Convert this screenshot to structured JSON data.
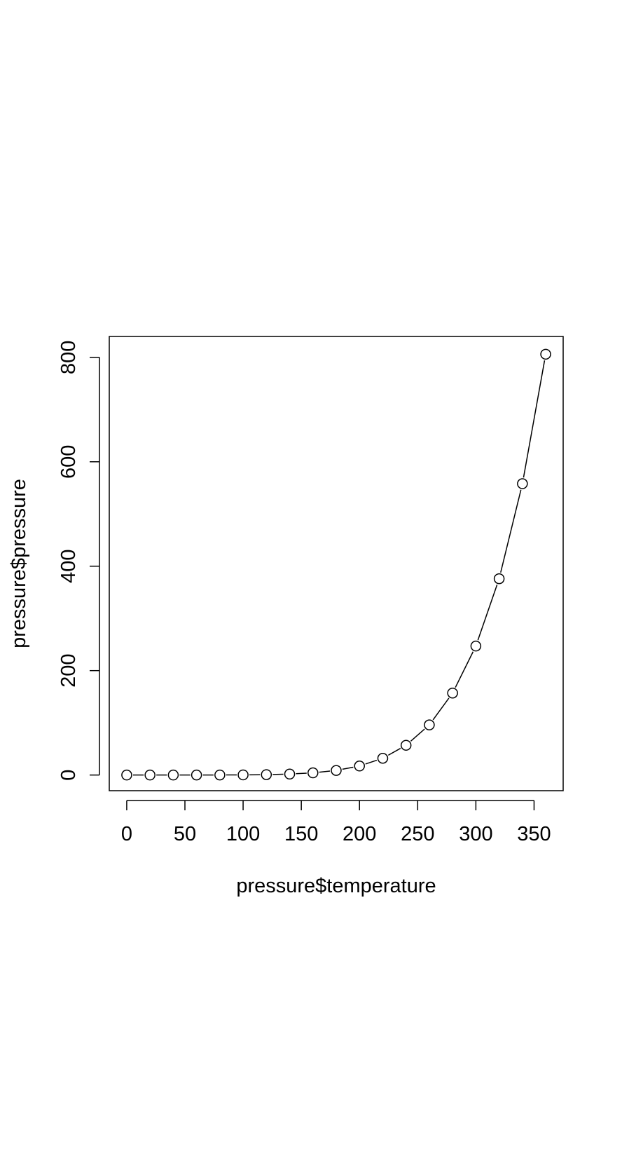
{
  "chart_data": {
    "type": "line",
    "title": "",
    "xlabel": "pressure$temperature",
    "ylabel": "pressure$pressure",
    "xlim": [
      -15,
      375
    ],
    "ylim": [
      -30,
      840
    ],
    "xticks": [
      "0",
      "50",
      "100",
      "150",
      "200",
      "250",
      "300",
      "350"
    ],
    "yticks": [
      "0",
      "200",
      "400",
      "600",
      "800"
    ],
    "grid": false,
    "legend": "none",
    "markers": "open-circle",
    "series": [
      {
        "x": [
          0,
          20,
          40,
          60,
          80,
          100,
          120,
          140,
          160,
          180,
          200,
          220,
          240,
          260,
          280,
          300,
          320,
          340,
          360
        ],
        "y": [
          0.0002,
          0.0012,
          0.006,
          0.03,
          0.09,
          0.27,
          0.75,
          1.85,
          4.2,
          8.8,
          17.3,
          32.1,
          57,
          96,
          157,
          247,
          376,
          558,
          806
        ]
      }
    ],
    "colors": {
      "line": "#000000",
      "marker": "#000000",
      "background": "#ffffff"
    }
  }
}
